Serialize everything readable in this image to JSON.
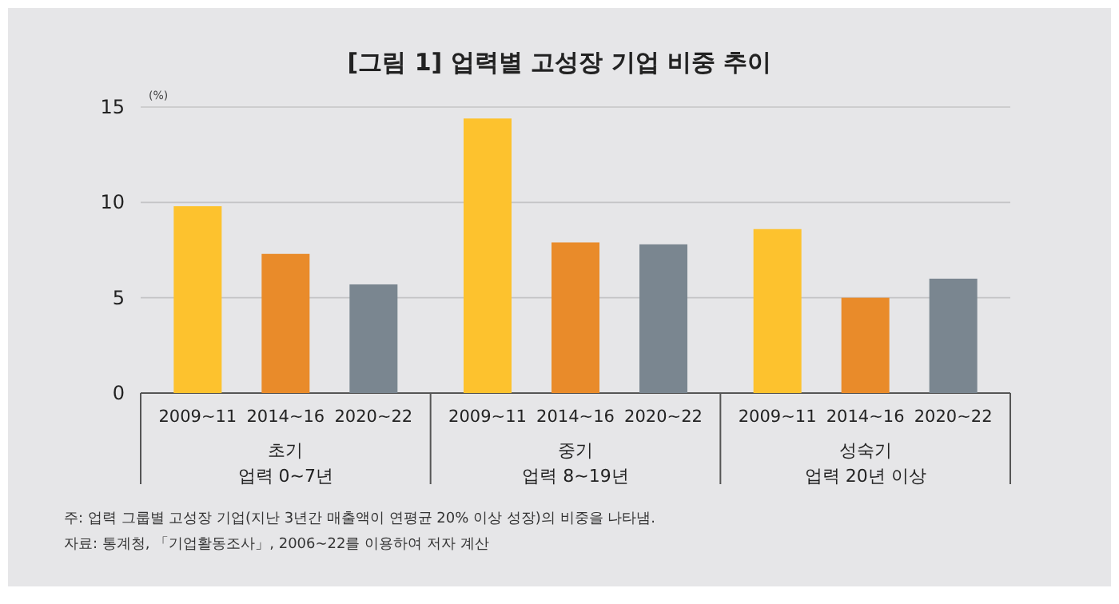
{
  "chart_data": {
    "type": "bar",
    "title": "[그림 1] 업력별 고성장 기업 비중 추이",
    "ylabel": "(%)",
    "categories": [
      "초기\n업력 0~7년",
      "중기\n업력 8~19년",
      "성숙기\n업력 20년 이상"
    ],
    "series": [
      {
        "name": "2009~11",
        "color": "#fdc22e",
        "values": [
          9.8,
          14.4,
          8.6
        ]
      },
      {
        "name": "2014~16",
        "color": "#e98b2a",
        "values": [
          7.3,
          7.9,
          5.0
        ]
      },
      {
        "name": "2020~22",
        "color": "#7a8690",
        "values": [
          5.7,
          7.8,
          6.0
        ]
      }
    ],
    "ylim": [
      0,
      15
    ],
    "yticks": [
      0,
      5,
      10,
      15
    ],
    "grid": "y",
    "legend": false,
    "annotations": [
      "주: 업력 그룹별 고성장 기업(지난 3년간 매출액이 연평균 20% 이상 성장)의 비중을 나타냄.",
      "자료: 통계청, 「기업활동조사」, 2006~22를 이용하여 저자 계산"
    ]
  }
}
